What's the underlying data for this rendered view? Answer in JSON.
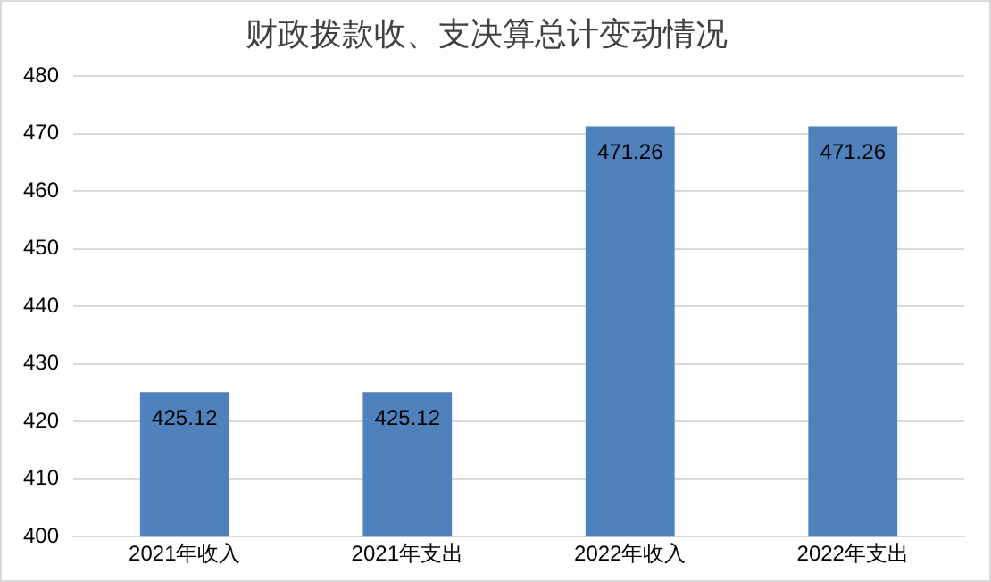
{
  "chart_data": {
    "type": "bar",
    "title": "财政拨款收、支决算总计变动情况",
    "categories": [
      "2021年收入",
      "2021年支出",
      "2022年收入",
      "2022年支出"
    ],
    "values": [
      425.12,
      425.12,
      471.26,
      471.26
    ],
    "color": "#4f81bd",
    "ylim": [
      400,
      480
    ],
    "yticks": [
      400,
      410,
      420,
      430,
      440,
      450,
      460,
      470,
      480
    ],
    "grid": "y",
    "data_labels": true,
    "legend": false
  }
}
